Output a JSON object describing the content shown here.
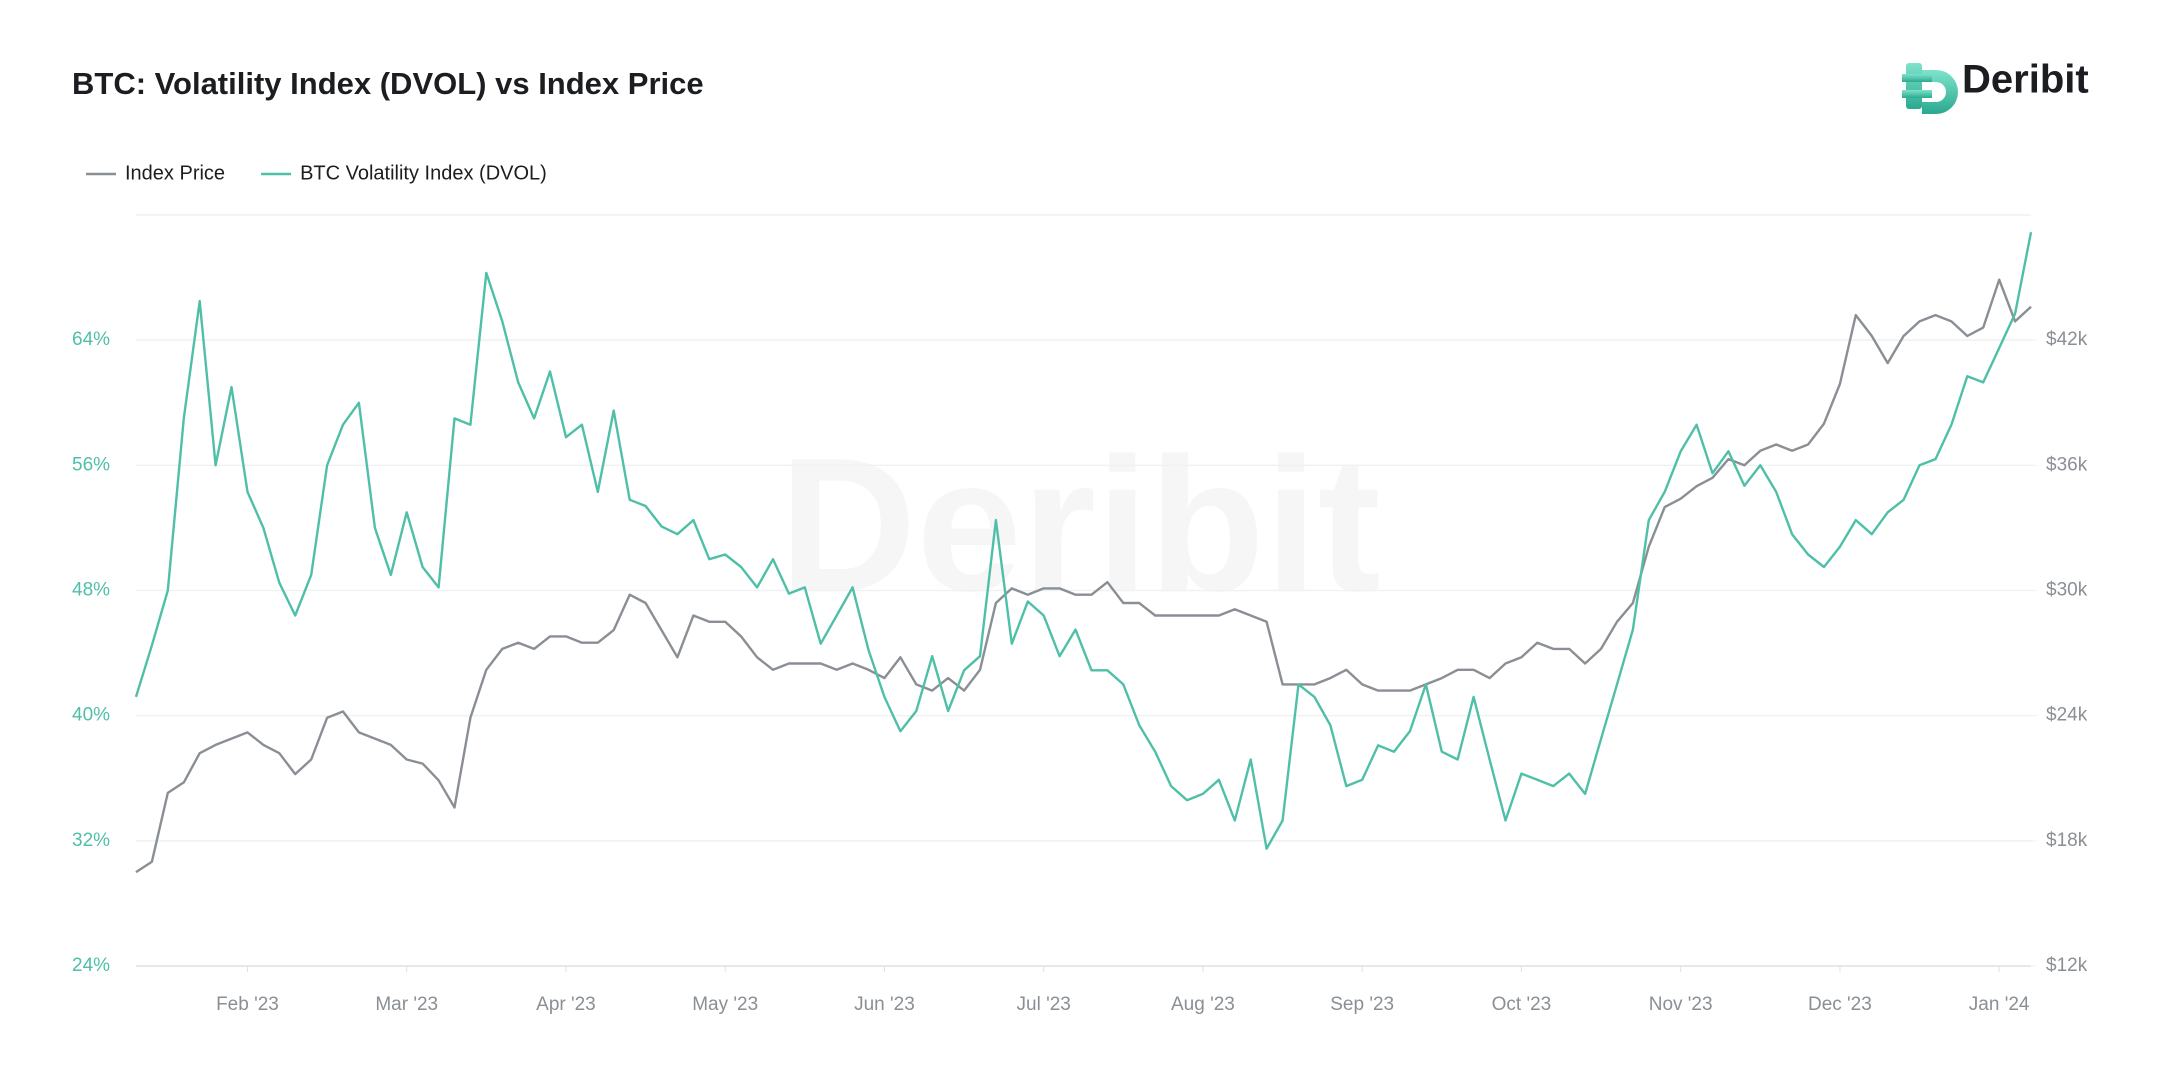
{
  "brand": "Deribit",
  "chart_data": {
    "type": "line",
    "title": "BTC: Volatility Index (DVOL) vs Index Price",
    "categories": [
      null,
      null,
      null,
      null,
      null,
      null,
      null,
      "Feb '23",
      null,
      null,
      null,
      null,
      null,
      null,
      null,
      null,
      null,
      "Mar '23",
      null,
      null,
      null,
      null,
      null,
      null,
      null,
      null,
      null,
      "Apr '23",
      null,
      null,
      null,
      null,
      null,
      null,
      null,
      null,
      null,
      "May '23",
      null,
      null,
      null,
      null,
      null,
      null,
      null,
      null,
      null,
      "Jun '23",
      null,
      null,
      null,
      null,
      null,
      null,
      null,
      null,
      null,
      "Jul '23",
      null,
      null,
      null,
      null,
      null,
      null,
      null,
      null,
      null,
      "Aug '23",
      null,
      null,
      null,
      null,
      null,
      null,
      null,
      null,
      null,
      "Sep '23",
      null,
      null,
      null,
      null,
      null,
      null,
      null,
      null,
      null,
      "Oct '23",
      null,
      null,
      null,
      null,
      null,
      null,
      null,
      null,
      null,
      "Nov '23",
      null,
      null,
      null,
      null,
      null,
      null,
      null,
      null,
      null,
      "Dec '23",
      null,
      null,
      null,
      null,
      null,
      null,
      null,
      null,
      null,
      "Jan '24",
      null,
      null
    ],
    "series": [
      {
        "name": "Index Price",
        "color": "#8a8f95",
        "axis": "y2",
        "values": [
          16500,
          17000,
          20300,
          20800,
          22200,
          22600,
          22900,
          23200,
          22600,
          22200,
          21200,
          21900,
          23900,
          24200,
          23200,
          22900,
          22600,
          21900,
          21700,
          20900,
          19600,
          23900,
          26200,
          27200,
          27500,
          27200,
          27800,
          27800,
          27500,
          27500,
          28100,
          29800,
          29400,
          28100,
          26800,
          28800,
          28500,
          28500,
          27800,
          26800,
          26200,
          26500,
          26500,
          26500,
          26200,
          26500,
          26200,
          25800,
          26800,
          25500,
          25200,
          25800,
          25200,
          26200,
          29400,
          30100,
          29800,
          30100,
          30100,
          29800,
          29800,
          30400,
          29400,
          29400,
          28800,
          28800,
          28800,
          28800,
          28800,
          29100,
          28800,
          28500,
          25500,
          25500,
          25500,
          25800,
          26200,
          25500,
          25200,
          25200,
          25200,
          25500,
          25800,
          26200,
          26200,
          25800,
          26500,
          26800,
          27500,
          27200,
          27200,
          26500,
          27200,
          28500,
          29400,
          32100,
          34000,
          34400,
          35000,
          35400,
          36300,
          36000,
          36700,
          37000,
          36700,
          37000,
          38000,
          39900,
          43200,
          42200,
          40900,
          42200,
          42900,
          43200,
          42900,
          42200,
          42600,
          44900,
          42900,
          43600
        ]
      },
      {
        "name": "BTC Volatility Index (DVOL)",
        "color": "#4fbfa8",
        "axis": "y",
        "values": [
          41.2,
          44.5,
          48,
          59,
          66.5,
          56,
          61,
          54.3,
          52,
          48.5,
          46.4,
          49,
          56,
          58.6,
          60,
          52,
          49,
          53,
          49.5,
          48.2,
          59,
          58.6,
          68.3,
          65.2,
          61.3,
          59,
          62,
          57.8,
          58.6,
          54.3,
          59.5,
          53.8,
          53.4,
          52.1,
          51.6,
          52.5,
          50,
          50.3,
          49.5,
          48.2,
          50,
          47.8,
          48.2,
          44.6,
          46.4,
          48.2,
          44.2,
          41.2,
          39,
          40.3,
          43.8,
          40.3,
          42.9,
          43.8,
          52.5,
          44.6,
          47.3,
          46.4,
          43.8,
          45.5,
          42.9,
          42.9,
          42,
          39.4,
          37.7,
          35.5,
          34.6,
          35,
          35.9,
          33.3,
          37.2,
          31.5,
          33.3,
          42,
          41.2,
          39.4,
          35.5,
          35.9,
          38.1,
          37.7,
          39,
          42,
          37.7,
          37.2,
          41.2,
          37.2,
          33.3,
          36.3,
          35.9,
          35.5,
          36.3,
          35,
          38.5,
          42,
          45.5,
          52.5,
          54.3,
          56.9,
          58.6,
          55.5,
          56.9,
          54.7,
          56,
          54.3,
          51.6,
          50.3,
          49.5,
          50.8,
          52.5,
          51.6,
          53,
          53.8,
          56,
          56.4,
          58.6,
          61.7,
          61.3,
          63.5,
          65.7,
          70.9
        ]
      }
    ],
    "ylim": [
      24,
      72
    ],
    "yticks": [
      {
        "value": 24,
        "label": "24%"
      },
      {
        "value": 32,
        "label": "32%"
      },
      {
        "value": 40,
        "label": "40%"
      },
      {
        "value": 48,
        "label": "48%"
      },
      {
        "value": 56,
        "label": "56%"
      },
      {
        "value": 64,
        "label": "64%"
      }
    ],
    "y2lim": [
      12000,
      48000
    ],
    "y2ticks": [
      {
        "value": 12000,
        "label": "$12k"
      },
      {
        "value": 18000,
        "label": "$18k"
      },
      {
        "value": 24000,
        "label": "$24k"
      },
      {
        "value": 30000,
        "label": "$30k"
      },
      {
        "value": 36000,
        "label": "$36k"
      },
      {
        "value": 42000,
        "label": "$42k"
      }
    ],
    "grid": true,
    "legend": "top-left"
  }
}
